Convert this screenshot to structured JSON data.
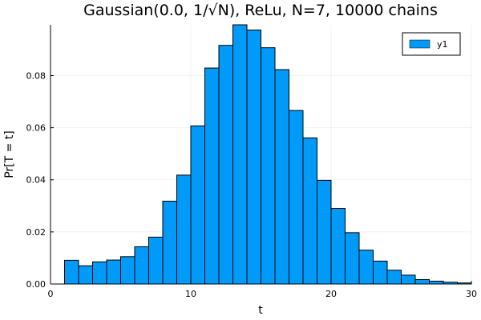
{
  "chart_data": {
    "type": "bar",
    "title": "Gaussian(0.0, 1/√N), ReLu, N=7, 10000 chains",
    "xlabel": "t",
    "ylabel": "Pr[T = t]",
    "xlim": [
      0,
      30
    ],
    "ylim": [
      0,
      0.0995
    ],
    "x_ticks": [
      0,
      10,
      20,
      30
    ],
    "y_ticks": [
      0.0,
      0.02,
      0.04,
      0.06,
      0.08
    ],
    "x_tick_labels": [
      "0",
      "10",
      "20",
      "30"
    ],
    "y_tick_labels": [
      "0.00",
      "0.02",
      "0.04",
      "0.06",
      "0.08"
    ],
    "grid": true,
    "legend_position": "top-right",
    "series": [
      {
        "name": "y1",
        "color": "#009af9",
        "bins": [
          {
            "x0": 1,
            "x1": 2,
            "value": 0.0091
          },
          {
            "x0": 2,
            "x1": 3,
            "value": 0.007
          },
          {
            "x0": 3,
            "x1": 4,
            "value": 0.0085
          },
          {
            "x0": 4,
            "x1": 5,
            "value": 0.0092
          },
          {
            "x0": 5,
            "x1": 6,
            "value": 0.0105
          },
          {
            "x0": 6,
            "x1": 7,
            "value": 0.0143
          },
          {
            "x0": 7,
            "x1": 8,
            "value": 0.018
          },
          {
            "x0": 8,
            "x1": 9,
            "value": 0.0318
          },
          {
            "x0": 9,
            "x1": 10,
            "value": 0.0418
          },
          {
            "x0": 10,
            "x1": 11,
            "value": 0.0607
          },
          {
            "x0": 11,
            "x1": 12,
            "value": 0.0829
          },
          {
            "x0": 12,
            "x1": 13,
            "value": 0.0916
          },
          {
            "x0": 13,
            "x1": 14,
            "value": 0.0995
          },
          {
            "x0": 14,
            "x1": 15,
            "value": 0.0975
          },
          {
            "x0": 15,
            "x1": 16,
            "value": 0.0907
          },
          {
            "x0": 16,
            "x1": 17,
            "value": 0.0823
          },
          {
            "x0": 17,
            "x1": 18,
            "value": 0.0666
          },
          {
            "x0": 18,
            "x1": 19,
            "value": 0.0561
          },
          {
            "x0": 19,
            "x1": 20,
            "value": 0.0398
          },
          {
            "x0": 20,
            "x1": 21,
            "value": 0.029
          },
          {
            "x0": 21,
            "x1": 22,
            "value": 0.0197
          },
          {
            "x0": 22,
            "x1": 23,
            "value": 0.013
          },
          {
            "x0": 23,
            "x1": 24,
            "value": 0.0088
          },
          {
            "x0": 24,
            "x1": 25,
            "value": 0.0053
          },
          {
            "x0": 25,
            "x1": 26,
            "value": 0.0034
          },
          {
            "x0": 26,
            "x1": 27,
            "value": 0.0017
          },
          {
            "x0": 27,
            "x1": 28,
            "value": 0.0011
          },
          {
            "x0": 28,
            "x1": 29,
            "value": 0.0007
          },
          {
            "x0": 29,
            "x1": 30,
            "value": 0.0004
          }
        ]
      }
    ]
  }
}
